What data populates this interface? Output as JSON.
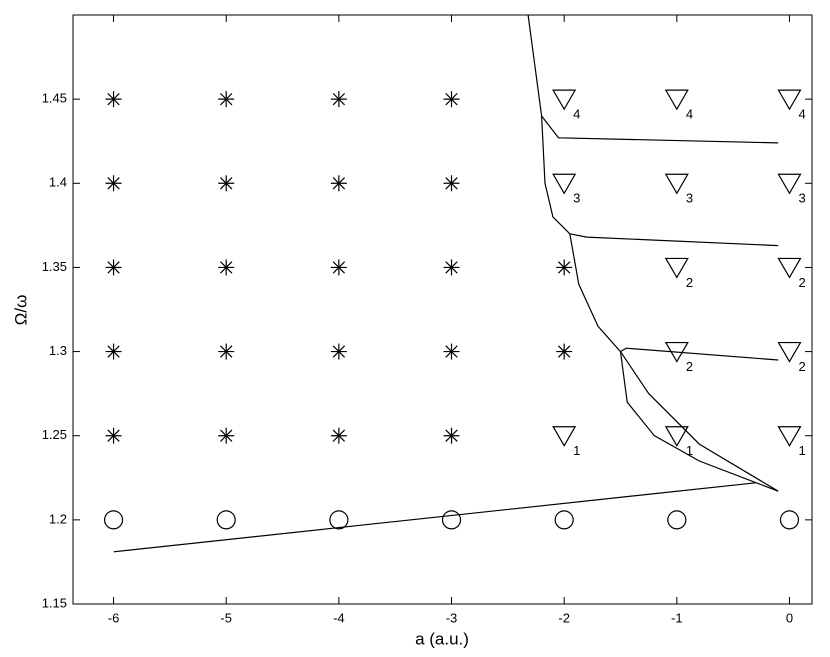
{
  "chart_data": {
    "type": "scatter",
    "xlabel": "a (a.u.)",
    "ylabel": "Ω/ω",
    "xlim": [
      -6.36,
      0.2
    ],
    "ylim": [
      1.15,
      1.5
    ],
    "xticks": [
      -6,
      -5,
      -4,
      -3,
      -2,
      -1,
      0
    ],
    "yticks": [
      1.15,
      1.2,
      1.25,
      1.3,
      1.35,
      1.4,
      1.45
    ],
    "grid": false,
    "series": [
      {
        "marker": "star",
        "color": "#000000",
        "x": [
          -6,
          -6,
          -6,
          -6,
          -6,
          -5,
          -5,
          -5,
          -5,
          -5,
          -4,
          -4,
          -4,
          -4,
          -4,
          -3,
          -3,
          -3,
          -3,
          -3,
          -2,
          -2
        ],
        "values": [
          1.25,
          1.3,
          1.35,
          1.4,
          1.45,
          1.25,
          1.3,
          1.35,
          1.4,
          1.45,
          1.25,
          1.3,
          1.35,
          1.4,
          1.45,
          1.25,
          1.3,
          1.35,
          1.4,
          1.45,
          1.3,
          1.35
        ]
      },
      {
        "marker": "triangle",
        "color": "#000000",
        "x": [
          -2,
          -2,
          -2,
          -1,
          -1,
          -1,
          -1,
          -1,
          0,
          0,
          0,
          0,
          0
        ],
        "values": [
          1.25,
          1.4,
          1.45,
          1.25,
          1.3,
          1.35,
          1.4,
          1.45,
          1.25,
          1.3,
          1.35,
          1.4,
          1.45
        ],
        "labels": [
          "1",
          "3",
          "4",
          "1",
          "2",
          "2",
          "3",
          "4",
          "1",
          "2",
          "2",
          "3",
          "4"
        ]
      },
      {
        "marker": "circle",
        "color": "#000000",
        "x": [
          -6,
          -5,
          -4,
          -3,
          -2,
          -1,
          0
        ],
        "values": [
          1.2,
          1.2,
          1.2,
          1.2,
          1.2,
          1.2,
          1.2
        ]
      }
    ],
    "lines": [
      {
        "color": "#000000",
        "x": [
          -6,
          -0.3
        ],
        "values": [
          1.181,
          1.222
        ]
      },
      {
        "color": "#000000",
        "x": [
          -2.32,
          -2.2,
          -2.17,
          -2.1,
          -1.95,
          -1.87,
          -1.7,
          -1.5,
          -1.25,
          -0.8,
          -0.1
        ],
        "values": [
          1.5,
          1.44,
          1.4,
          1.38,
          1.37,
          1.34,
          1.315,
          1.3,
          1.275,
          1.245,
          1.217
        ]
      },
      {
        "color": "#000000",
        "x": [
          -1.5,
          -1.44,
          -1.2,
          -0.8,
          -0.1
        ],
        "values": [
          1.3,
          1.27,
          1.25,
          1.235,
          1.217
        ]
      },
      {
        "color": "#000000",
        "x": [
          -2.2,
          -2.05,
          -0.1
        ],
        "values": [
          1.44,
          1.427,
          1.424
        ]
      },
      {
        "color": "#000000",
        "x": [
          -1.95,
          -1.8,
          -0.1
        ],
        "values": [
          1.37,
          1.368,
          1.363
        ]
      },
      {
        "color": "#000000",
        "x": [
          -1.5,
          -1.45,
          -0.1
        ],
        "values": [
          1.3,
          1.302,
          1.295
        ]
      }
    ]
  }
}
